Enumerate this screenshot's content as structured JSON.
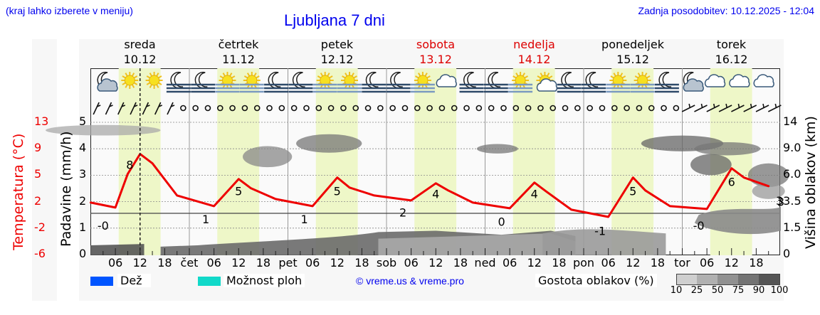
{
  "header": {
    "hint": "(kraj lahko izberete v meniju)",
    "title": "Ljubljana 7 dni",
    "updated": "Zadnja posodobitev: 10.12.2025 - 12:04"
  },
  "days": [
    {
      "name": "sreda",
      "date": "10.12",
      "weekend": false
    },
    {
      "name": "četrtek",
      "date": "11.12",
      "weekend": false
    },
    {
      "name": "petek",
      "date": "12.12",
      "weekend": false
    },
    {
      "name": "sobota",
      "date": "13.12",
      "weekend": true
    },
    {
      "name": "nedelja",
      "date": "14.12",
      "weekend": true
    },
    {
      "name": "ponedeljek",
      "date": "15.12",
      "weekend": false
    },
    {
      "name": "torek",
      "date": "16.12",
      "weekend": false
    }
  ],
  "axes": {
    "left_temp_label": "Temperatura (°C)",
    "left_precip_label": "Padavine (mm/h)",
    "right_label": "Višina oblakov (km)",
    "temp_ticks": [
      "13",
      "9",
      "5",
      "2",
      "-2",
      "-6"
    ],
    "precip_ticks": [
      "5",
      "4",
      "3",
      "2",
      "1",
      "0"
    ],
    "cloud_height_ticks": [
      "14",
      "9.0",
      "6.0",
      "33.5",
      "1.5",
      "0"
    ],
    "x_ticks": [
      "06",
      "12",
      "18",
      "čet",
      "06",
      "12",
      "18",
      "pet",
      "06",
      "12",
      "18",
      "sob",
      "06",
      "12",
      "18",
      "ned",
      "06",
      "12",
      "18",
      "pon",
      "06",
      "12",
      "18",
      "tor",
      "06",
      "12",
      "18"
    ]
  },
  "legend": {
    "rain_label": "Dež",
    "rain_color": "#0055ff",
    "showers_label": "Možnost ploh",
    "showers_color": "#11d9c9",
    "copyright": "© vreme.us & vreme.pro",
    "cloud_density_label": "Gostota oblakov (%)",
    "cloud_density_scale": [
      "10",
      "25",
      "50",
      "75",
      "90",
      "100"
    ],
    "cloud_density_colors": [
      "#cfcfcf",
      "#b0b0b0",
      "#919191",
      "#737373",
      "#555555"
    ]
  },
  "icons": [
    "moon-cloud",
    "sun",
    "sun",
    "moon-fog",
    "moon-fog",
    "sun-fog",
    "sun-fog",
    "moon-fog",
    "moon-fog",
    "sun-fog",
    "sun-fog",
    "moon-fog",
    "moon-fog",
    "sun-fog",
    "cloud",
    "moon-fog",
    "moon-fog",
    "sun-fog",
    "sun-cloud",
    "moon-fog",
    "moon-fog",
    "sun-fog",
    "sun-fog",
    "moon-fog",
    "moon-cloud",
    "cloud",
    "cloud",
    "cloud"
  ],
  "chart_data": {
    "type": "line",
    "title": "Ljubljana 7 dni",
    "xlabel": "",
    "ylabel": "Temperatura (°C)",
    "ylim": [
      -6,
      13
    ],
    "now_marker": "10.12 12:00",
    "series": [
      {
        "name": "Temperatura (°C)",
        "color": "#ee0000",
        "x_hours": [
          0,
          6,
          9,
          12,
          15,
          21,
          30,
          36,
          39,
          45,
          54,
          60,
          63,
          69,
          78,
          84,
          87,
          93,
          102,
          108,
          111,
          117,
          126,
          132,
          135,
          141,
          150,
          156,
          159,
          165
        ],
        "values": [
          1.5,
          0.8,
          5.5,
          8.3,
          7.0,
          2.5,
          1.0,
          4.8,
          3.5,
          2.0,
          1.0,
          5.0,
          3.6,
          2.5,
          1.8,
          4.2,
          3.2,
          1.5,
          0.7,
          4.3,
          3.0,
          0.5,
          -0.5,
          5.0,
          3.2,
          1.0,
          0.6,
          6.3,
          5.0,
          3.8
        ]
      }
    ],
    "labels": [
      {
        "hour": 3,
        "text": "-0"
      },
      {
        "hour": 9.5,
        "text": "8"
      },
      {
        "hour": 28,
        "text": "1"
      },
      {
        "hour": 36,
        "text": "5"
      },
      {
        "hour": 52,
        "text": "1"
      },
      {
        "hour": 60,
        "text": "5"
      },
      {
        "hour": 76,
        "text": "2"
      },
      {
        "hour": 84,
        "text": "4"
      },
      {
        "hour": 100,
        "text": "0"
      },
      {
        "hour": 108,
        "text": "4"
      },
      {
        "hour": 124,
        "text": "-1"
      },
      {
        "hour": 132,
        "text": "5"
      },
      {
        "hour": 148,
        "text": "-0"
      },
      {
        "hour": 156,
        "text": "6"
      },
      {
        "hour": 168,
        "text": "3"
      }
    ],
    "precipitation_mm_h": [
      0,
      0,
      0,
      0,
      0,
      0,
      0
    ],
    "grid": true,
    "legend_position": "bottom"
  }
}
